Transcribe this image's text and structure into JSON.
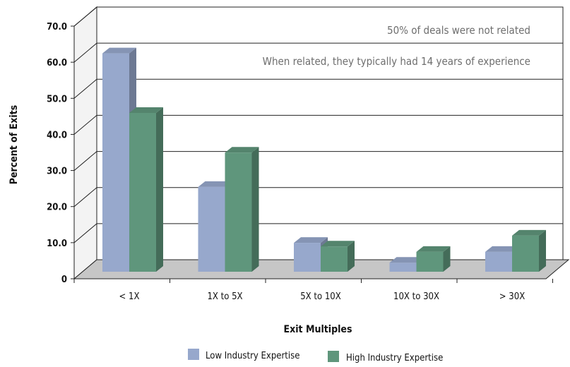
{
  "chart_data": {
    "type": "bar",
    "categories": [
      "< 1X",
      "1X to 5X",
      "5X to 10X",
      "10X to 30X",
      "> 30X"
    ],
    "series": [
      {
        "name": "Low Industry Expertise",
        "values": [
          60.5,
          23.5,
          8.0,
          2.5,
          5.5
        ],
        "color": "#97a8cc"
      },
      {
        "name": "High Industry Expertise",
        "values": [
          44.0,
          33.0,
          7.0,
          5.5,
          10.0
        ],
        "color": "#5f967c"
      }
    ],
    "ylim": [
      0,
      70
    ],
    "yticks": [
      "0",
      "10.0",
      "20.0",
      "30.0",
      "40.0",
      "50.0",
      "60.0",
      "70.0"
    ],
    "ylabel": "Percent of Exits",
    "xlabel": "Exit Multiples",
    "annotations": [
      "50% of deals were not related",
      "When related, they typically had 14 years of experience"
    ],
    "grid": true,
    "legend_position": "bottom"
  }
}
